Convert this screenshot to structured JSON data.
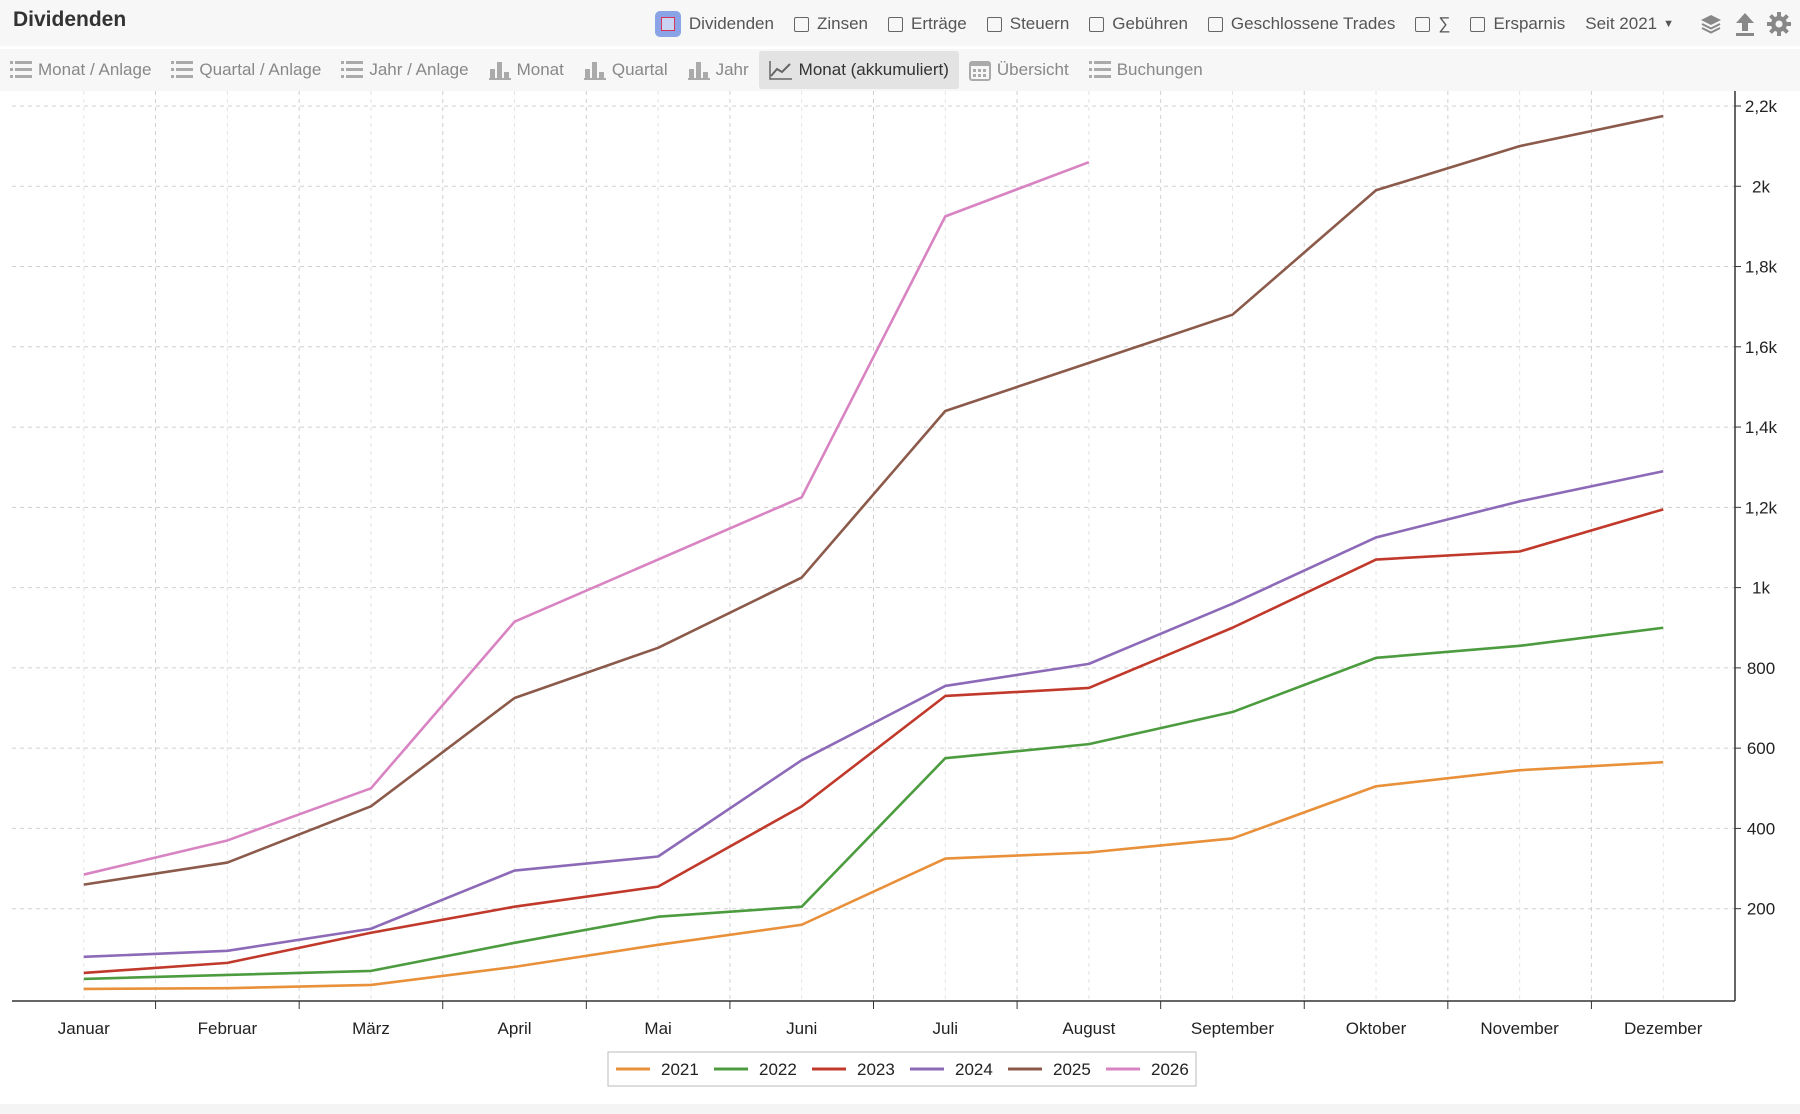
{
  "title": "Dividenden",
  "filters": [
    {
      "label": "Dividenden",
      "checked": true
    },
    {
      "label": "Zinsen",
      "checked": false
    },
    {
      "label": "Erträge",
      "checked": false
    },
    {
      "label": "Steuern",
      "checked": false
    },
    {
      "label": "Gebühren",
      "checked": false
    },
    {
      "label": "Geschlossene Trades",
      "checked": false
    },
    {
      "label": "∑",
      "checked": false
    },
    {
      "label": "Ersparnis",
      "checked": false
    }
  ],
  "period": "Seit 2021",
  "toolbar_icons": [
    "layers-icon",
    "upload-icon",
    "gear-icon"
  ],
  "tabs": [
    {
      "label": "Monat / Anlage",
      "icon": "list-icon",
      "active": false
    },
    {
      "label": "Quartal / Anlage",
      "icon": "list-icon",
      "active": false
    },
    {
      "label": "Jahr / Anlage",
      "icon": "list-icon",
      "active": false
    },
    {
      "label": "Monat",
      "icon": "bar-chart-icon",
      "active": false
    },
    {
      "label": "Quartal",
      "icon": "bar-chart-icon",
      "active": false
    },
    {
      "label": "Jahr",
      "icon": "bar-chart-icon",
      "active": false
    },
    {
      "label": "Monat (akkumuliert)",
      "icon": "line-chart-icon",
      "active": true
    },
    {
      "label": "Übersicht",
      "icon": "calendar-icon",
      "active": false
    },
    {
      "label": "Buchungen",
      "icon": "list-icon",
      "active": false
    }
  ],
  "chart_data": {
    "type": "line",
    "categories": [
      "Januar",
      "Februar",
      "März",
      "April",
      "Mai",
      "Juni",
      "Juli",
      "August",
      "September",
      "Oktober",
      "November",
      "Dezember"
    ],
    "series": [
      {
        "name": "2021",
        "color": "#e8903a",
        "values": [
          0,
          2,
          10,
          55,
          110,
          160,
          325,
          340,
          375,
          505,
          545,
          565
        ]
      },
      {
        "name": "2022",
        "color": "#4c9c3f",
        "values": [
          25,
          35,
          45,
          115,
          180,
          205,
          575,
          610,
          690,
          825,
          855,
          900
        ]
      },
      {
        "name": "2023",
        "color": "#c0392b",
        "values": [
          40,
          65,
          140,
          205,
          255,
          455,
          730,
          750,
          900,
          1070,
          1090,
          1195
        ]
      },
      {
        "name": "2024",
        "color": "#8d6ab8",
        "values": [
          80,
          95,
          150,
          295,
          330,
          570,
          755,
          810,
          960,
          1125,
          1215,
          1290
        ]
      },
      {
        "name": "2025",
        "color": "#8b5a4a",
        "values": [
          260,
          315,
          455,
          725,
          850,
          1025,
          1440,
          1560,
          1680,
          1990,
          2100,
          2175
        ]
      },
      {
        "name": "2026",
        "color": "#d984c2",
        "values": [
          285,
          370,
          500,
          915,
          null,
          1225,
          1925,
          2060,
          null,
          null,
          null,
          null
        ]
      }
    ],
    "y_ticks": [
      "200",
      "400",
      "600",
      "800",
      "1k",
      "1,2k",
      "1,4k",
      "1,6k",
      "1,8k",
      "2k",
      "2,2k"
    ],
    "y_tick_values": [
      200,
      400,
      600,
      800,
      1000,
      1200,
      1400,
      1600,
      1800,
      2000,
      2200
    ],
    "ylim": [
      -30,
      2200
    ],
    "y_axis_side": "right",
    "grid": true,
    "legend_position": "bottom-center",
    "legend": [
      "2021",
      "2022",
      "2023",
      "2024",
      "2025",
      "2026"
    ]
  }
}
